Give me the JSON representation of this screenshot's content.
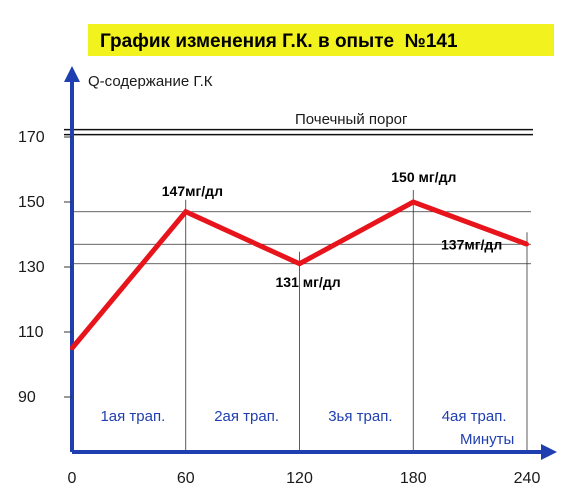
{
  "chart_data": {
    "type": "line",
    "title": "График изменения Г.К. в опыте  №141",
    "ylabel": "Q-содержание Г.К",
    "xlabel": "Минуты",
    "x": [
      0,
      60,
      120,
      180,
      240
    ],
    "series": [
      {
        "values": [
          105,
          147,
          131,
          150,
          137
        ],
        "color": "#e8141c"
      }
    ],
    "xticks": [
      0,
      60,
      120,
      180,
      240
    ],
    "yticks": [
      90,
      110,
      130,
      150,
      170
    ],
    "xlim": [
      0,
      240
    ],
    "ylim": [
      81,
      185
    ],
    "threshold": {
      "value": 171.5,
      "label": "Почечный порог"
    },
    "reference_lines": [
      147,
      137,
      131
    ],
    "point_labels": [
      {
        "x": 60,
        "text": "147мг/дл"
      },
      {
        "x": 120,
        "text": "131 мг/дл"
      },
      {
        "x": 180,
        "text": "150 мг/дл"
      },
      {
        "x": 240,
        "text": "137мг/дл"
      }
    ],
    "segment_labels": [
      "1ая трап.",
      "2ая трап.",
      "3ья трап.",
      "4ая трап."
    ],
    "colors": {
      "axis": "#1f3fb0",
      "title_bg": "#f2f21e",
      "line": "#e8141c"
    },
    "grid": false
  }
}
